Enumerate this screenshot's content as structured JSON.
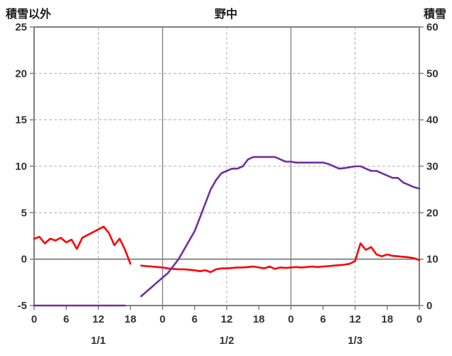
{
  "chart_data": {
    "type": "line",
    "title": "野中",
    "left_axis": {
      "label": "積雪以外",
      "min": -5,
      "max": 25,
      "ticks": [
        -5,
        0,
        5,
        10,
        15,
        20,
        25
      ]
    },
    "right_axis": {
      "label": "積雪",
      "min": 0,
      "max": 60,
      "ticks": [
        0,
        10,
        20,
        30,
        40,
        50,
        60
      ]
    },
    "x_axis": {
      "min": 0,
      "max": 72,
      "tick_interval": 6,
      "tick_labels": [
        "0",
        "6",
        "12",
        "18",
        "0",
        "6",
        "12",
        "18",
        "0",
        "6",
        "12",
        "18",
        "0"
      ],
      "day_labels": [
        {
          "label": "1/1",
          "x": 12
        },
        {
          "label": "1/2",
          "x": 36
        },
        {
          "label": "1/3",
          "x": 60
        }
      ]
    },
    "grid": {
      "horizontal_dashed_at": [
        5,
        10,
        15,
        20
      ],
      "vertical_dashed_at": [
        12,
        36,
        60
      ],
      "vertical_solid_at": [
        24,
        48
      ],
      "zero_line": true
    },
    "colors": {
      "axis": "#7f7f7f",
      "zero": "#737373",
      "grid": "#b0b0b0",
      "text": "#333333",
      "background": "#ffffff"
    },
    "series": [
      {
        "id": "temperature",
        "name": "積雪以外",
        "axis": "left",
        "color": "#ff0000",
        "x_start": 0,
        "x_step": 1,
        "values": [
          2.2,
          2.4,
          1.7,
          2.2,
          2.0,
          2.3,
          1.8,
          2.1,
          1.1,
          2.3,
          2.6,
          2.9,
          3.2,
          3.5,
          2.8,
          1.5,
          2.2,
          1.0,
          -0.5,
          null,
          -0.7,
          -0.75,
          -0.8,
          -0.85,
          -0.9,
          -1.0,
          -1.05,
          -1.1,
          -1.1,
          -1.15,
          -1.2,
          -1.3,
          -1.2,
          -1.4,
          -1.1,
          -1.0,
          -1.0,
          -0.95,
          -0.9,
          -0.9,
          -0.85,
          -0.8,
          -0.9,
          -1.0,
          -0.8,
          -1.05,
          -0.9,
          -0.95,
          -0.9,
          -0.85,
          -0.9,
          -0.85,
          -0.8,
          -0.85,
          -0.8,
          -0.75,
          -0.7,
          -0.65,
          -0.6,
          -0.5,
          -0.2,
          1.7,
          1.0,
          1.3,
          0.5,
          0.3,
          0.5,
          0.35,
          0.3,
          0.25,
          0.2,
          0.1,
          -0.1
        ]
      },
      {
        "id": "snow-depth",
        "name": "積雪",
        "axis": "right",
        "color": "#7030a0",
        "x_start": 0,
        "x_step": 1,
        "values": [
          0,
          0,
          0,
          0,
          0,
          0,
          0,
          0,
          0,
          0,
          0,
          0,
          0,
          0,
          0,
          0,
          0,
          0,
          null,
          null,
          2,
          3,
          4,
          5,
          6,
          7,
          8.5,
          10,
          12,
          14,
          16,
          19,
          22,
          25,
          27,
          28.5,
          29,
          29.5,
          29.5,
          30,
          31.5,
          32,
          32,
          32,
          32,
          32,
          31.5,
          31,
          31,
          30.8,
          30.8,
          30.8,
          30.8,
          30.8,
          30.8,
          30.5,
          30,
          29.5,
          29.6,
          29.8,
          30,
          30,
          29.5,
          29,
          29,
          28.5,
          28,
          27.5,
          27.5,
          26.5,
          26,
          25.5,
          25.2
        ]
      }
    ]
  }
}
